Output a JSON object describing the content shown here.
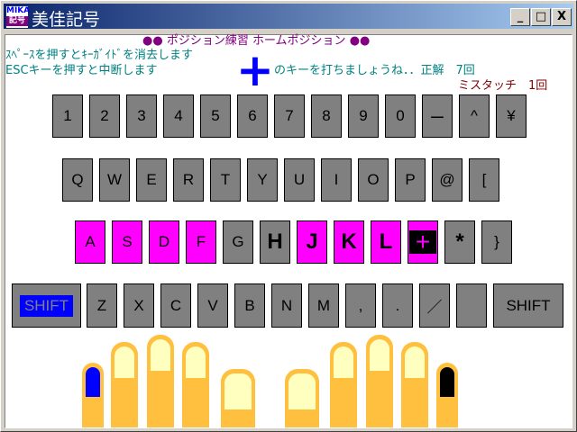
{
  "window": {
    "title": "美佳記号",
    "logo_top": "MIKA",
    "logo_bottom": "記号",
    "buttons": [
      "_",
      "□",
      "X"
    ]
  },
  "header": {
    "heading": "●● ポジション練習 ホームポジション ●●",
    "hint_space": "ｽﾍﾟｰｽを押すとｷｰｶﾞｲﾄﾞを消去します",
    "hint_esc": "ESCキーを押すと中断します",
    "prompt": "のキーを打ちましょうね．．正解　7回",
    "target_key": "+",
    "miss": "ミスタッチ　1回"
  },
  "colors": {
    "heading": "#800080",
    "hint": "#008080",
    "miss": "#800000",
    "home_key": "#ff00ff",
    "key": "#808080",
    "target_mark": "#0000ff",
    "finger": "#ffc040",
    "nail": "#ffffc0"
  },
  "keyboard": {
    "row1": [
      {
        "label": "1"
      },
      {
        "label": "2"
      },
      {
        "label": "3"
      },
      {
        "label": "4"
      },
      {
        "label": "5"
      },
      {
        "label": "6"
      },
      {
        "label": "7"
      },
      {
        "label": "8"
      },
      {
        "label": "9"
      },
      {
        "label": "0"
      },
      {
        "label": "ー"
      },
      {
        "label": "^"
      },
      {
        "label": "¥"
      }
    ],
    "row2": [
      {
        "label": "Q"
      },
      {
        "label": "W"
      },
      {
        "label": "E"
      },
      {
        "label": "R"
      },
      {
        "label": "T"
      },
      {
        "label": "Y"
      },
      {
        "label": "U"
      },
      {
        "label": "I"
      },
      {
        "label": "O"
      },
      {
        "label": "P"
      },
      {
        "label": "@"
      },
      {
        "label": "["
      }
    ],
    "row3": [
      {
        "label": "A",
        "home": true
      },
      {
        "label": "S",
        "home": true
      },
      {
        "label": "D",
        "home": true
      },
      {
        "label": "F",
        "home": true
      },
      {
        "label": "G"
      },
      {
        "label": "H",
        "bold": true
      },
      {
        "label": "J",
        "home": true,
        "bold": true
      },
      {
        "label": "K",
        "home": true,
        "bold": true
      },
      {
        "label": "L",
        "home": true,
        "bold": true
      },
      {
        "label": "+",
        "home": true,
        "target": true
      },
      {
        "label": "*",
        "bold": true
      },
      {
        "label": "}"
      }
    ],
    "row4": [
      {
        "label": "SHIFT",
        "shift_active": true
      },
      {
        "label": "Z"
      },
      {
        "label": "X"
      },
      {
        "label": "C"
      },
      {
        "label": "V"
      },
      {
        "label": "B"
      },
      {
        "label": "N"
      },
      {
        "label": "M"
      },
      {
        "label": ","
      },
      {
        "label": "."
      },
      {
        "label": "／"
      },
      {
        "label": ""
      },
      {
        "label": "SHIFT"
      }
    ]
  },
  "hands": {
    "left_pinky_nail": "#0000ff",
    "right_pinky_nail": "#000000"
  }
}
